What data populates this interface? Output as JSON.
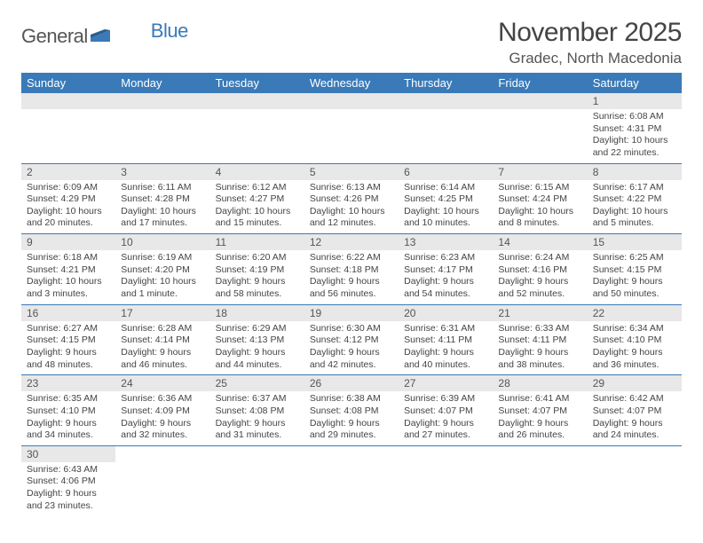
{
  "logo": {
    "general": "General",
    "blue": "Blue"
  },
  "title": "November 2025",
  "subtitle": "Gradec, North Macedonia",
  "colors": {
    "header_bg": "#3a7ab8",
    "header_fg": "#ffffff",
    "daynum_bg": "#e8e8e8",
    "text": "#444444",
    "row_border": "#3a7ab8"
  },
  "weekdays": [
    "Sunday",
    "Monday",
    "Tuesday",
    "Wednesday",
    "Thursday",
    "Friday",
    "Saturday"
  ],
  "weeks": [
    [
      null,
      null,
      null,
      null,
      null,
      null,
      {
        "n": "1",
        "sr": "6:08 AM",
        "ss": "4:31 PM",
        "dl": "10 hours and 22 minutes."
      }
    ],
    [
      {
        "n": "2",
        "sr": "6:09 AM",
        "ss": "4:29 PM",
        "dl": "10 hours and 20 minutes."
      },
      {
        "n": "3",
        "sr": "6:11 AM",
        "ss": "4:28 PM",
        "dl": "10 hours and 17 minutes."
      },
      {
        "n": "4",
        "sr": "6:12 AM",
        "ss": "4:27 PM",
        "dl": "10 hours and 15 minutes."
      },
      {
        "n": "5",
        "sr": "6:13 AM",
        "ss": "4:26 PM",
        "dl": "10 hours and 12 minutes."
      },
      {
        "n": "6",
        "sr": "6:14 AM",
        "ss": "4:25 PM",
        "dl": "10 hours and 10 minutes."
      },
      {
        "n": "7",
        "sr": "6:15 AM",
        "ss": "4:24 PM",
        "dl": "10 hours and 8 minutes."
      },
      {
        "n": "8",
        "sr": "6:17 AM",
        "ss": "4:22 PM",
        "dl": "10 hours and 5 minutes."
      }
    ],
    [
      {
        "n": "9",
        "sr": "6:18 AM",
        "ss": "4:21 PM",
        "dl": "10 hours and 3 minutes."
      },
      {
        "n": "10",
        "sr": "6:19 AM",
        "ss": "4:20 PM",
        "dl": "10 hours and 1 minute."
      },
      {
        "n": "11",
        "sr": "6:20 AM",
        "ss": "4:19 PM",
        "dl": "9 hours and 58 minutes."
      },
      {
        "n": "12",
        "sr": "6:22 AM",
        "ss": "4:18 PM",
        "dl": "9 hours and 56 minutes."
      },
      {
        "n": "13",
        "sr": "6:23 AM",
        "ss": "4:17 PM",
        "dl": "9 hours and 54 minutes."
      },
      {
        "n": "14",
        "sr": "6:24 AM",
        "ss": "4:16 PM",
        "dl": "9 hours and 52 minutes."
      },
      {
        "n": "15",
        "sr": "6:25 AM",
        "ss": "4:15 PM",
        "dl": "9 hours and 50 minutes."
      }
    ],
    [
      {
        "n": "16",
        "sr": "6:27 AM",
        "ss": "4:15 PM",
        "dl": "9 hours and 48 minutes."
      },
      {
        "n": "17",
        "sr": "6:28 AM",
        "ss": "4:14 PM",
        "dl": "9 hours and 46 minutes."
      },
      {
        "n": "18",
        "sr": "6:29 AM",
        "ss": "4:13 PM",
        "dl": "9 hours and 44 minutes."
      },
      {
        "n": "19",
        "sr": "6:30 AM",
        "ss": "4:12 PM",
        "dl": "9 hours and 42 minutes."
      },
      {
        "n": "20",
        "sr": "6:31 AM",
        "ss": "4:11 PM",
        "dl": "9 hours and 40 minutes."
      },
      {
        "n": "21",
        "sr": "6:33 AM",
        "ss": "4:11 PM",
        "dl": "9 hours and 38 minutes."
      },
      {
        "n": "22",
        "sr": "6:34 AM",
        "ss": "4:10 PM",
        "dl": "9 hours and 36 minutes."
      }
    ],
    [
      {
        "n": "23",
        "sr": "6:35 AM",
        "ss": "4:10 PM",
        "dl": "9 hours and 34 minutes."
      },
      {
        "n": "24",
        "sr": "6:36 AM",
        "ss": "4:09 PM",
        "dl": "9 hours and 32 minutes."
      },
      {
        "n": "25",
        "sr": "6:37 AM",
        "ss": "4:08 PM",
        "dl": "9 hours and 31 minutes."
      },
      {
        "n": "26",
        "sr": "6:38 AM",
        "ss": "4:08 PM",
        "dl": "9 hours and 29 minutes."
      },
      {
        "n": "27",
        "sr": "6:39 AM",
        "ss": "4:07 PM",
        "dl": "9 hours and 27 minutes."
      },
      {
        "n": "28",
        "sr": "6:41 AM",
        "ss": "4:07 PM",
        "dl": "9 hours and 26 minutes."
      },
      {
        "n": "29",
        "sr": "6:42 AM",
        "ss": "4:07 PM",
        "dl": "9 hours and 24 minutes."
      }
    ],
    [
      {
        "n": "30",
        "sr": "6:43 AM",
        "ss": "4:06 PM",
        "dl": "9 hours and 23 minutes."
      },
      null,
      null,
      null,
      null,
      null,
      null
    ]
  ],
  "labels": {
    "sunrise": "Sunrise:",
    "sunset": "Sunset:",
    "daylight": "Daylight:"
  }
}
